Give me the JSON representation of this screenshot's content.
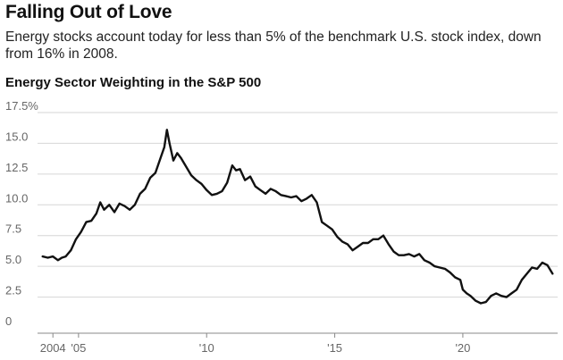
{
  "headline": "Falling Out of Love",
  "dek": "Energy stocks account today for less than 5% of the benchmark U.S. stock index, down from 16% in 2008.",
  "chart_data": {
    "type": "line",
    "title": "Energy Sector Weighting in the S&P 500",
    "xlabel": "",
    "ylabel": "",
    "x_ticks": [
      {
        "value": 2004.0,
        "label": "2004"
      },
      {
        "value": 2005.0,
        "label": "'05"
      },
      {
        "value": 2010.0,
        "label": "'10"
      },
      {
        "value": 2015.0,
        "label": "'15"
      },
      {
        "value": 2020.0,
        "label": "'20"
      }
    ],
    "y_ticks": [
      {
        "value": 0,
        "label": "0"
      },
      {
        "value": 2.5,
        "label": "2.5"
      },
      {
        "value": 5,
        "label": "5.0"
      },
      {
        "value": 7.5,
        "label": "7.5"
      },
      {
        "value": 10,
        "label": "10.0"
      },
      {
        "value": 12.5,
        "label": "12.5"
      },
      {
        "value": 15,
        "label": "15.0"
      },
      {
        "value": 17.5,
        "label": "17.5%"
      }
    ],
    "xlim": [
      2003.4,
      2023.7
    ],
    "ylim": [
      0,
      17.5
    ],
    "grid": "horizontal",
    "line_color": "#111111",
    "grid_color": "#d6d6d6",
    "series": [
      {
        "x": [
          2003.6,
          2003.8,
          2004.0,
          2004.2,
          2004.35,
          2004.5,
          2004.7,
          2004.9,
          2005.1,
          2005.3,
          2005.5,
          2005.7,
          2005.85,
          2006.0,
          2006.2,
          2006.4,
          2006.6,
          2006.8,
          2007.0,
          2007.2,
          2007.4,
          2007.6,
          2007.8,
          2008.0,
          2008.2,
          2008.35,
          2008.45,
          2008.55,
          2008.7,
          2008.85,
          2009.0,
          2009.2,
          2009.4,
          2009.6,
          2009.8,
          2010.0,
          2010.2,
          2010.4,
          2010.6,
          2010.8,
          2011.0,
          2011.15,
          2011.3,
          2011.5,
          2011.7,
          2011.9,
          2012.1,
          2012.3,
          2012.5,
          2012.7,
          2012.9,
          2013.1,
          2013.3,
          2013.5,
          2013.7,
          2013.9,
          2014.1,
          2014.3,
          2014.5,
          2014.7,
          2014.9,
          2015.1,
          2015.3,
          2015.5,
          2015.7,
          2015.9,
          2016.1,
          2016.3,
          2016.5,
          2016.7,
          2016.9,
          2017.1,
          2017.3,
          2017.5,
          2017.7,
          2017.9,
          2018.1,
          2018.3,
          2018.5,
          2018.7,
          2018.9,
          2019.1,
          2019.3,
          2019.5,
          2019.7,
          2019.9,
          2020.0,
          2020.15,
          2020.3,
          2020.5,
          2020.7,
          2020.9,
          2021.1,
          2021.3,
          2021.5,
          2021.7,
          2021.9,
          2022.1,
          2022.3,
          2022.5,
          2022.7,
          2022.9,
          2023.1,
          2023.3,
          2023.5
        ],
        "y": [
          5.8,
          5.7,
          5.8,
          5.5,
          5.7,
          5.8,
          6.3,
          7.2,
          7.8,
          8.6,
          8.7,
          9.3,
          10.2,
          9.6,
          10.0,
          9.4,
          10.1,
          9.9,
          9.6,
          10.0,
          10.9,
          11.3,
          12.2,
          12.6,
          13.8,
          14.7,
          16.1,
          15.0,
          13.6,
          14.2,
          13.8,
          13.1,
          12.4,
          12.0,
          11.7,
          11.2,
          10.8,
          10.9,
          11.1,
          11.8,
          13.2,
          12.8,
          12.9,
          12.0,
          12.3,
          11.5,
          11.2,
          10.9,
          11.3,
          11.1,
          10.8,
          10.7,
          10.6,
          10.7,
          10.3,
          10.5,
          10.8,
          10.2,
          8.6,
          8.3,
          8.0,
          7.4,
          7.0,
          6.8,
          6.3,
          6.6,
          6.9,
          6.9,
          7.2,
          7.2,
          7.5,
          6.8,
          6.2,
          5.9,
          5.9,
          6.0,
          5.8,
          6.0,
          5.5,
          5.3,
          5.0,
          4.9,
          4.8,
          4.5,
          4.1,
          3.9,
          3.1,
          2.8,
          2.6,
          2.2,
          2.0,
          2.1,
          2.6,
          2.8,
          2.6,
          2.5,
          2.8,
          3.1,
          3.9,
          4.4,
          4.9,
          4.8,
          5.3,
          5.1,
          4.4
        ]
      }
    ]
  }
}
